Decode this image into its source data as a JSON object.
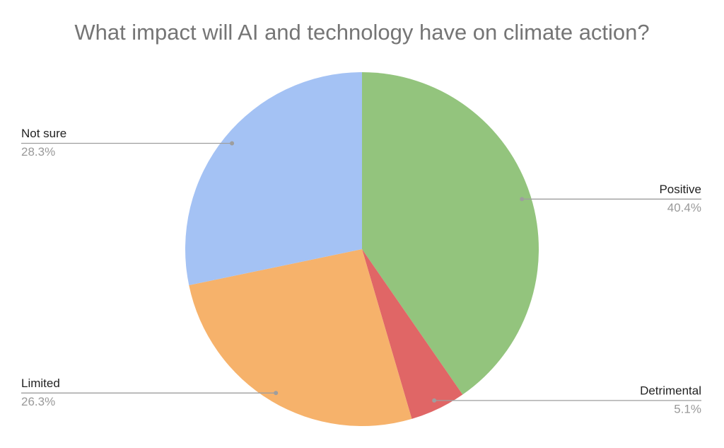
{
  "chart_data": {
    "type": "pie",
    "title": "What impact will AI and technology have on climate action?",
    "categories": [
      "Positive",
      "Detrimental",
      "Limited",
      "Not sure"
    ],
    "values": [
      40.4,
      5.1,
      26.3,
      28.3
    ],
    "value_labels": [
      "40.4%",
      "5.1%",
      "26.3%",
      "28.3%"
    ],
    "colors": [
      "#93c47d",
      "#e06666",
      "#f6b26b",
      "#a4c2f4"
    ]
  }
}
